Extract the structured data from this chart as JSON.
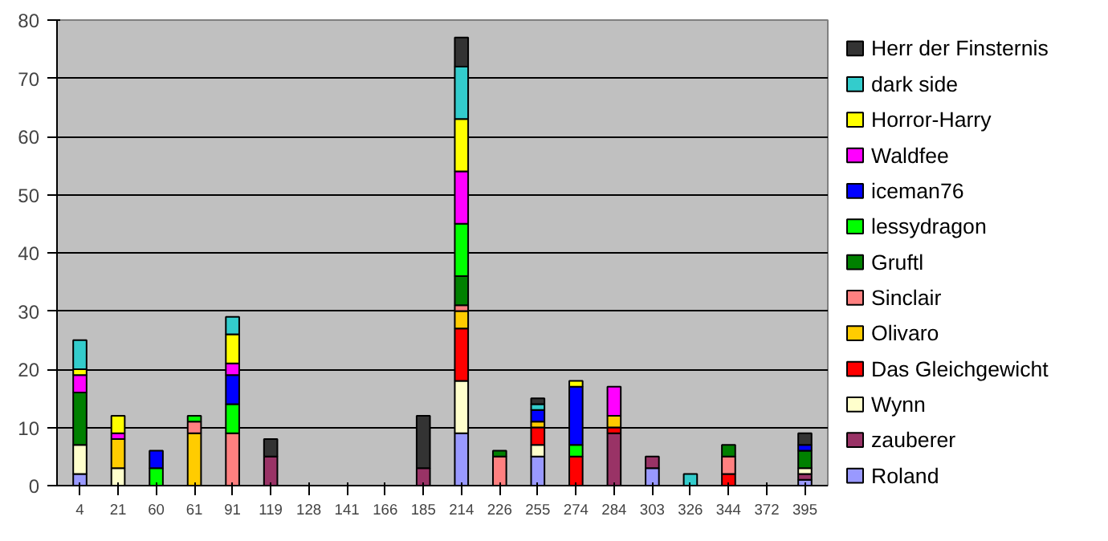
{
  "chart_data": {
    "type": "bar",
    "stacked": true,
    "categories": [
      "4",
      "21",
      "60",
      "61",
      "91",
      "119",
      "128",
      "141",
      "166",
      "185",
      "214",
      "226",
      "255",
      "274",
      "284",
      "303",
      "326",
      "344",
      "372",
      "395"
    ],
    "ylim": [
      0,
      80
    ],
    "yticks": [
      0,
      10,
      20,
      30,
      40,
      50,
      60,
      70,
      80
    ],
    "grid": "y",
    "legend": "right",
    "series": [
      {
        "name": "Roland",
        "color": "#9999ff",
        "values": [
          2,
          0,
          0,
          0,
          0,
          0,
          0,
          0,
          0,
          0,
          9,
          0,
          5,
          0,
          0,
          3,
          0,
          0,
          0,
          1
        ]
      },
      {
        "name": "zauberer",
        "color": "#993366",
        "values": [
          0,
          0,
          0,
          0,
          0,
          5,
          0,
          0,
          0,
          3,
          0,
          0,
          0,
          0,
          9,
          2,
          0,
          0,
          0,
          1
        ]
      },
      {
        "name": "Wynn",
        "color": "#ffffcc",
        "values": [
          5,
          3,
          0,
          0,
          0,
          0,
          0,
          0,
          0,
          0,
          9,
          0,
          2,
          0,
          0,
          0,
          0,
          0,
          0,
          1
        ]
      },
      {
        "name": "Das Gleichgewicht",
        "color": "#ff0000",
        "values": [
          0,
          0,
          0,
          0,
          0,
          0,
          0,
          0,
          0,
          0,
          9,
          0,
          3,
          5,
          1,
          0,
          0,
          2,
          0,
          0
        ]
      },
      {
        "name": "Olivaro",
        "color": "#ffcc00",
        "values": [
          0,
          5,
          0,
          9,
          0,
          0,
          0,
          0,
          0,
          0,
          3,
          0,
          1,
          0,
          2,
          0,
          0,
          0,
          0,
          0
        ]
      },
      {
        "name": "Sinclair",
        "color": "#ff8080",
        "values": [
          0,
          0,
          0,
          2,
          9,
          0,
          0,
          0,
          0,
          0,
          1,
          5,
          0,
          0,
          0,
          0,
          0,
          3,
          0,
          0
        ]
      },
      {
        "name": "Gruftl",
        "color": "#008000",
        "values": [
          9,
          0,
          0,
          0,
          0,
          0,
          0,
          0,
          0,
          0,
          5,
          1,
          0,
          0,
          0,
          0,
          0,
          2,
          0,
          3
        ]
      },
      {
        "name": "lessydragon",
        "color": "#00ff00",
        "values": [
          0,
          0,
          3,
          1,
          5,
          0,
          0,
          0,
          0,
          0,
          9,
          0,
          0,
          2,
          0,
          0,
          0,
          0,
          0,
          0
        ]
      },
      {
        "name": "iceman76",
        "color": "#0000ff",
        "values": [
          0,
          0,
          3,
          0,
          5,
          0,
          0,
          0,
          0,
          0,
          0,
          0,
          2,
          10,
          0,
          0,
          0,
          0,
          0,
          1
        ]
      },
      {
        "name": "Waldfee",
        "color": "#ff00ff",
        "values": [
          3,
          1,
          0,
          0,
          2,
          0,
          0,
          0,
          0,
          0,
          9,
          0,
          0,
          0,
          5,
          0,
          0,
          0,
          0,
          0
        ]
      },
      {
        "name": "Horror-Harry",
        "color": "#ffff00",
        "values": [
          1,
          3,
          0,
          0,
          5,
          0,
          0,
          0,
          0,
          0,
          9,
          0,
          0,
          1,
          0,
          0,
          0,
          0,
          0,
          0
        ]
      },
      {
        "name": "dark side",
        "color": "#33cccc",
        "values": [
          5,
          0,
          0,
          0,
          3,
          0,
          0,
          0,
          0,
          0,
          9,
          0,
          1,
          0,
          0,
          0,
          2,
          0,
          0,
          0
        ]
      },
      {
        "name": "Herr der Finsternis",
        "color": "#333333",
        "values": [
          0,
          0,
          0,
          0,
          0,
          3,
          0,
          0,
          0,
          9,
          5,
          0,
          1,
          0,
          0,
          0,
          0,
          0,
          0,
          2
        ]
      }
    ]
  }
}
